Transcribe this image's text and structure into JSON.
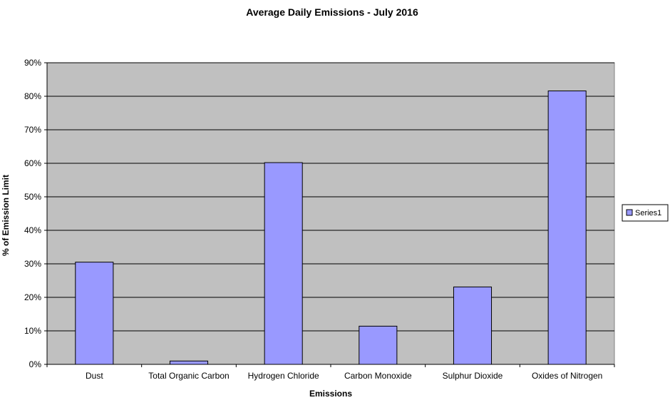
{
  "chart_data": {
    "type": "bar",
    "title": "Average Daily Emissions - July 2016",
    "xlabel": "Emissions",
    "ylabel": "% of Emission Limit",
    "categories": [
      "Dust",
      "Total Organic Carbon",
      "Hydrogen Chloride",
      "Carbon Monoxide",
      "Sulphur Dioxide",
      "Oxides of Nitrogen"
    ],
    "series": [
      {
        "name": "Series1",
        "values": [
          30.5,
          1.0,
          60.2,
          11.4,
          23.1,
          81.6
        ]
      }
    ],
    "ylim": [
      0,
      90
    ],
    "yticks": [
      "0%",
      "10%",
      "20%",
      "30%",
      "40%",
      "50%",
      "60%",
      "70%",
      "80%",
      "90%"
    ],
    "grid": true,
    "legend_position": "right",
    "colors": {
      "bar_fill": "#9999ff",
      "bar_stroke": "#000000",
      "plot_background": "#c0c0c0",
      "gridline": "#000000"
    }
  }
}
